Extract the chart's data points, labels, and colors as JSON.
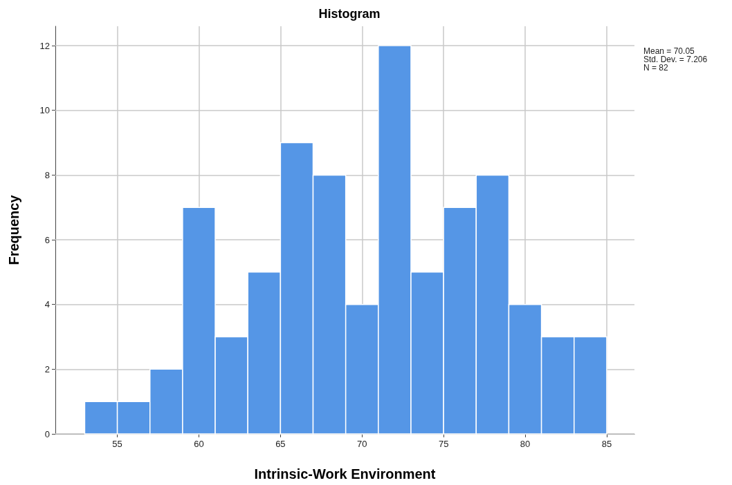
{
  "chart_data": {
    "type": "histogram",
    "title": "Histogram",
    "xlabel": "Intrinsic-Work Environment",
    "ylabel": "Frequency",
    "bins": [
      53,
      55,
      57,
      59,
      61,
      63,
      65,
      67,
      69,
      71,
      73,
      75,
      77,
      79,
      81,
      83,
      85
    ],
    "values": [
      1,
      1,
      2,
      7,
      3,
      5,
      9,
      8,
      4,
      12,
      5,
      7,
      8,
      4,
      3,
      3
    ],
    "color": "#5596e6",
    "xlim": [
      51.2,
      86.7
    ],
    "xticks": [
      55,
      60,
      65,
      70,
      75,
      80,
      85
    ],
    "ylim": [
      0,
      12.6
    ],
    "yticks": [
      0,
      2,
      4,
      6,
      8,
      10,
      12
    ],
    "grid": true,
    "annotations": [
      "Mean = 70.05",
      "Std. Dev. = 7.206",
      "N = 82"
    ]
  }
}
